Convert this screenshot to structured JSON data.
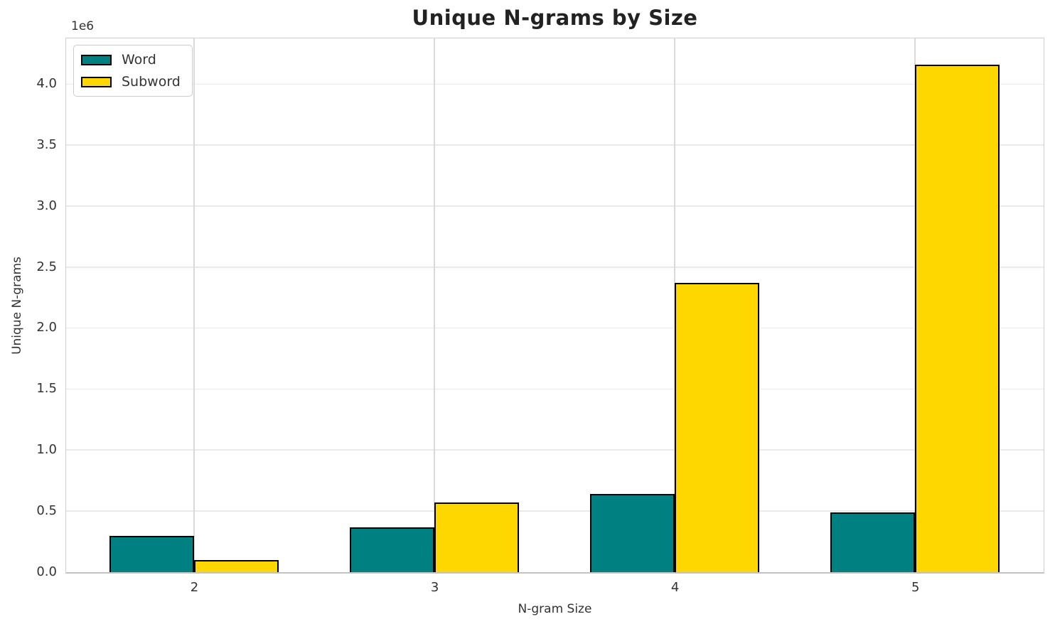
{
  "chart_data": {
    "type": "bar",
    "title": "Unique N-grams by Size",
    "xlabel": "N-gram Size",
    "ylabel": "Unique N-grams",
    "offset_text": "1e6",
    "categories": [
      "2",
      "3",
      "4",
      "5"
    ],
    "series": [
      {
        "name": "Word",
        "color": "#008080",
        "values": [
          300000,
          370000,
          640000,
          490000
        ]
      },
      {
        "name": "Subword",
        "color": "#FFD700",
        "values": [
          100000,
          570000,
          2370000,
          4160000
        ]
      }
    ],
    "yticks": [
      0,
      500000,
      1000000,
      1500000,
      2000000,
      2500000,
      3000000,
      3500000,
      4000000
    ],
    "ytick_labels": [
      "0.0",
      "0.5",
      "1.0",
      "1.5",
      "2.0",
      "2.5",
      "3.0",
      "3.5",
      "4.0"
    ],
    "ylim": [
      0,
      4370000
    ],
    "grid": true,
    "legend_position": "upper left",
    "bar_edge_color": "#000000"
  }
}
